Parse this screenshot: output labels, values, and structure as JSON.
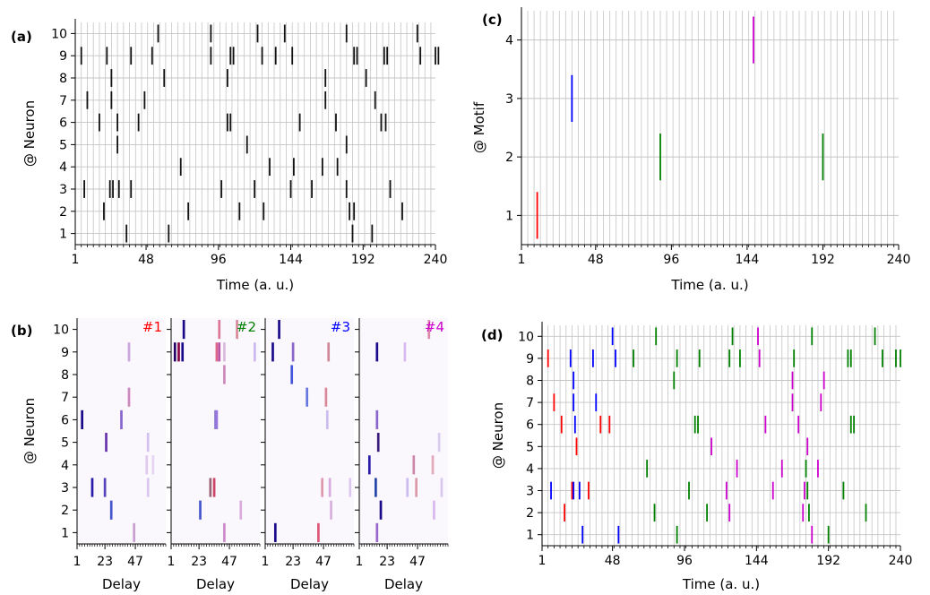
{
  "chart_data": [
    {
      "id": "a",
      "panel_label": "(a)",
      "type": "scatter",
      "xlabel": "Time (a. u.)",
      "ylabel": "@ Neuron",
      "xlim": [
        1,
        240
      ],
      "ylim": [
        0.5,
        10.5
      ],
      "xticks": [
        1,
        48,
        96,
        144,
        192,
        240
      ],
      "yticks": [
        1,
        2,
        3,
        4,
        5,
        6,
        7,
        8,
        9,
        10
      ],
      "grid": true,
      "spikes": [
        [
          35,
          1
        ],
        [
          63,
          1
        ],
        [
          185,
          1
        ],
        [
          198,
          1
        ],
        [
          20,
          2
        ],
        [
          76,
          2
        ],
        [
          110,
          2
        ],
        [
          126,
          2
        ],
        [
          183,
          2
        ],
        [
          186,
          2
        ],
        [
          218,
          2
        ],
        [
          7,
          3
        ],
        [
          24,
          3
        ],
        [
          26,
          3
        ],
        [
          30,
          3
        ],
        [
          38,
          3
        ],
        [
          98,
          3
        ],
        [
          120,
          3
        ],
        [
          144,
          3
        ],
        [
          158,
          3
        ],
        [
          181,
          3
        ],
        [
          210,
          3
        ],
        [
          71,
          4
        ],
        [
          130,
          4
        ],
        [
          146,
          4
        ],
        [
          165,
          4
        ],
        [
          175,
          4
        ],
        [
          29,
          5
        ],
        [
          115,
          5
        ],
        [
          181,
          5
        ],
        [
          17,
          6
        ],
        [
          29,
          6
        ],
        [
          43,
          6
        ],
        [
          102,
          6
        ],
        [
          104,
          6
        ],
        [
          150,
          6
        ],
        [
          174,
          6
        ],
        [
          204,
          6
        ],
        [
          207,
          6
        ],
        [
          9,
          7
        ],
        [
          25,
          7
        ],
        [
          47,
          7
        ],
        [
          167,
          7
        ],
        [
          200,
          7
        ],
        [
          25,
          8
        ],
        [
          60,
          8
        ],
        [
          102,
          8
        ],
        [
          167,
          8
        ],
        [
          194,
          8
        ],
        [
          5,
          9
        ],
        [
          22,
          9
        ],
        [
          38,
          9
        ],
        [
          52,
          9
        ],
        [
          91,
          9
        ],
        [
          104,
          9
        ],
        [
          106,
          9
        ],
        [
          125,
          9
        ],
        [
          134,
          9
        ],
        [
          145,
          9
        ],
        [
          186,
          9
        ],
        [
          188,
          9
        ],
        [
          206,
          9
        ],
        [
          208,
          9
        ],
        [
          230,
          9
        ],
        [
          240,
          9
        ],
        [
          242,
          9
        ],
        [
          56,
          10
        ],
        [
          91,
          10
        ],
        [
          122,
          10
        ],
        [
          140,
          10
        ],
        [
          181,
          10
        ],
        [
          228,
          10
        ]
      ]
    },
    {
      "id": "b",
      "panel_label": "(b)",
      "type": "heatmap",
      "xlabel": "Delay",
      "ylabel": "@ Neuron",
      "xlim": [
        1,
        71
      ],
      "ylim": [
        0.5,
        10.5
      ],
      "xticks": [
        1,
        23,
        47
      ],
      "yticks": [
        1,
        2,
        3,
        4,
        5,
        6,
        7,
        8,
        9,
        10
      ],
      "kernels": [
        {
          "label": "#1",
          "color": "#ff0000",
          "cells": [
            [
              5,
              6,
              "#1a0a8a"
            ],
            [
              24,
              5,
              "#6633aa"
            ],
            [
              13,
              3,
              "#2a1aaa"
            ],
            [
              23,
              3,
              "#5544bb"
            ],
            [
              28,
              2,
              "#4455cc"
            ],
            [
              42,
              9,
              "#c9a6dd"
            ],
            [
              36,
              6,
              "#8866cc"
            ],
            [
              42,
              7,
              "#cc88bb"
            ],
            [
              57,
              5,
              "#d2c0ee"
            ],
            [
              56,
              4,
              "#e0c8ee"
            ],
            [
              61,
              4,
              "#e6d4f4"
            ],
            [
              57,
              3,
              "#d8c6ee"
            ],
            [
              46,
              1,
              "#c8a0d0"
            ]
          ]
        },
        {
          "label": "#2",
          "color": "#008000",
          "cells": [
            [
              11,
              10,
              "#1a0a8a"
            ],
            [
              4,
              9,
              "#220066"
            ],
            [
              7,
              9,
              "#880044"
            ],
            [
              10,
              9,
              "#1a0a8a"
            ],
            [
              37,
              9,
              "#dd6688"
            ],
            [
              39,
              9,
              "#bb55aa"
            ],
            [
              43,
              9,
              "#d8b8dd"
            ],
            [
              67,
              9,
              "#ccb8ee"
            ],
            [
              39,
              10,
              "#dd7799"
            ],
            [
              53,
              10,
              "#d88899"
            ],
            [
              43,
              8,
              "#cc88bb"
            ],
            [
              36,
              6,
              "#8877cc"
            ],
            [
              37,
              6,
              "#9977dd"
            ],
            [
              32,
              3,
              "#996677"
            ],
            [
              35,
              3,
              "#cc4466"
            ],
            [
              24,
              2,
              "#4455cc"
            ],
            [
              56,
              2,
              "#d8aadd"
            ],
            [
              43,
              1,
              "#cc88cc"
            ]
          ]
        },
        {
          "label": "#3",
          "color": "#0000ff",
          "cells": [
            [
              12,
              10,
              "#1a0a8a"
            ],
            [
              7,
              9,
              "#1a0a8a"
            ],
            [
              23,
              9,
              "#8866cc"
            ],
            [
              51,
              9,
              "#d08899"
            ],
            [
              22,
              8,
              "#4455dd"
            ],
            [
              34,
              7,
              "#6677dd"
            ],
            [
              49,
              7,
              "#d88899"
            ],
            [
              50,
              6,
              "#ccbbee"
            ],
            [
              46,
              3,
              "#dd99aa"
            ],
            [
              52,
              3,
              "#d8aadd"
            ],
            [
              68,
              3,
              "#ddc8ee"
            ],
            [
              53,
              2,
              "#d8b0dd"
            ],
            [
              9,
              1,
              "#1a0a8a"
            ],
            [
              43,
              1,
              "#dd5577"
            ]
          ]
        },
        {
          "label": "#4",
          "color": "#cc00cc",
          "cells": [
            [
              56,
              10,
              "#dd88aa"
            ],
            [
              15,
              9,
              "#1a0a8a"
            ],
            [
              37,
              9,
              "#d8b8ee"
            ],
            [
              15,
              6,
              "#8866cc"
            ],
            [
              16,
              5,
              "#3a1a7a"
            ],
            [
              64,
              5,
              "#d8ccee"
            ],
            [
              9,
              4,
              "#2a1aaa"
            ],
            [
              44,
              4,
              "#cc88aa"
            ],
            [
              59,
              4,
              "#e0aabb"
            ],
            [
              14,
              3,
              "#2244aa"
            ],
            [
              39,
              3,
              "#ccbbee"
            ],
            [
              46,
              3,
              "#dd99aa"
            ],
            [
              66,
              3,
              "#d8c8ee"
            ],
            [
              18,
              2,
              "#1a0a8a"
            ],
            [
              60,
              2,
              "#d8b8ee"
            ],
            [
              15,
              1,
              "#9966cc"
            ]
          ]
        }
      ]
    },
    {
      "id": "c",
      "panel_label": "(c)",
      "type": "scatter",
      "xlabel": "Time (a. u.)",
      "ylabel": "@ Motif",
      "xlim": [
        1,
        240
      ],
      "ylim": [
        0.5,
        4.5
      ],
      "xticks": [
        1,
        48,
        96,
        144,
        192,
        240
      ],
      "yticks": [
        1,
        2,
        3,
        4
      ],
      "grid": true,
      "spikes": [
        [
          11,
          1,
          "#ff0000"
        ],
        [
          33,
          3,
          "#0000ff"
        ],
        [
          89,
          2,
          "#008000"
        ],
        [
          148,
          4,
          "#cc00cc"
        ],
        [
          192,
          2,
          "#008000"
        ]
      ]
    },
    {
      "id": "d",
      "panel_label": "(d)",
      "type": "scatter",
      "xlabel": "Time (a. u.)",
      "ylabel": "@ Neuron",
      "xlim": [
        1,
        240
      ],
      "ylim": [
        0.5,
        10.5
      ],
      "xticks": [
        1,
        48,
        96,
        144,
        192,
        240
      ],
      "yticks": [
        1,
        2,
        3,
        4,
        5,
        6,
        7,
        8,
        9,
        10
      ],
      "grid": true,
      "spikes": [
        [
          28,
          1,
          "#0000ff"
        ],
        [
          52,
          1,
          "#0000ff"
        ],
        [
          91,
          1,
          "#008000"
        ],
        [
          181,
          1,
          "#cc00cc"
        ],
        [
          192,
          1,
          "#008000"
        ],
        [
          16,
          2,
          "#ff0000"
        ],
        [
          76,
          2,
          "#008000"
        ],
        [
          111,
          2,
          "#008000"
        ],
        [
          126,
          2,
          "#cc00cc"
        ],
        [
          175,
          2,
          "#cc00cc"
        ],
        [
          179,
          2,
          "#008000"
        ],
        [
          217,
          2,
          "#008000"
        ],
        [
          7,
          3,
          "#0000ff"
        ],
        [
          21,
          3,
          "#ff0000"
        ],
        [
          22,
          3,
          "#0000ff"
        ],
        [
          26,
          3,
          "#0000ff"
        ],
        [
          32,
          3,
          "#ff0000"
        ],
        [
          99,
          3,
          "#008000"
        ],
        [
          124,
          3,
          "#cc00cc"
        ],
        [
          155,
          3,
          "#cc00cc"
        ],
        [
          176,
          3,
          "#cc00cc"
        ],
        [
          178,
          3,
          "#008000"
        ],
        [
          202,
          3,
          "#008000"
        ],
        [
          71,
          4,
          "#008000"
        ],
        [
          131,
          4,
          "#cc00cc"
        ],
        [
          161,
          4,
          "#cc00cc"
        ],
        [
          177,
          4,
          "#008000"
        ],
        [
          185,
          4,
          "#cc00cc"
        ],
        [
          24,
          5,
          "#ff0000"
        ],
        [
          114,
          5,
          "#cc00cc"
        ],
        [
          178,
          5,
          "#cc00cc"
        ],
        [
          14,
          6,
          "#ff0000"
        ],
        [
          23,
          6,
          "#0000ff"
        ],
        [
          40,
          6,
          "#ff0000"
        ],
        [
          46,
          6,
          "#ff0000"
        ],
        [
          103,
          6,
          "#008000"
        ],
        [
          105,
          6,
          "#008000"
        ],
        [
          150,
          6,
          "#cc00cc"
        ],
        [
          172,
          6,
          "#cc00cc"
        ],
        [
          207,
          6,
          "#008000"
        ],
        [
          209,
          6,
          "#008000"
        ],
        [
          9,
          7,
          "#ff0000"
        ],
        [
          22,
          7,
          "#0000ff"
        ],
        [
          37,
          7,
          "#0000ff"
        ],
        [
          168,
          7,
          "#cc00cc"
        ],
        [
          187,
          7,
          "#cc00cc"
        ],
        [
          22,
          8,
          "#0000ff"
        ],
        [
          89,
          8,
          "#008000"
        ],
        [
          168,
          8,
          "#cc00cc"
        ],
        [
          189,
          8,
          "#cc00cc"
        ],
        [
          5,
          9,
          "#ff0000"
        ],
        [
          20,
          9,
          "#0000ff"
        ],
        [
          35,
          9,
          "#0000ff"
        ],
        [
          50,
          9,
          "#0000ff"
        ],
        [
          62,
          9,
          "#008000"
        ],
        [
          91,
          9,
          "#008000"
        ],
        [
          106,
          9,
          "#008000"
        ],
        [
          126,
          9,
          "#008000"
        ],
        [
          133,
          9,
          "#008000"
        ],
        [
          146,
          9,
          "#cc00cc"
        ],
        [
          169,
          9,
          "#008000"
        ],
        [
          205,
          9,
          "#008000"
        ],
        [
          207,
          9,
          "#008000"
        ],
        [
          228,
          9,
          "#008000"
        ],
        [
          237,
          9,
          "#008000"
        ],
        [
          240,
          9,
          "#008000"
        ],
        [
          48,
          10,
          "#0000ff"
        ],
        [
          77,
          10,
          "#008000"
        ],
        [
          128,
          10,
          "#008000"
        ],
        [
          145,
          10,
          "#cc00cc"
        ],
        [
          181,
          10,
          "#008000"
        ],
        [
          223,
          10,
          "#008000"
        ]
      ]
    }
  ]
}
